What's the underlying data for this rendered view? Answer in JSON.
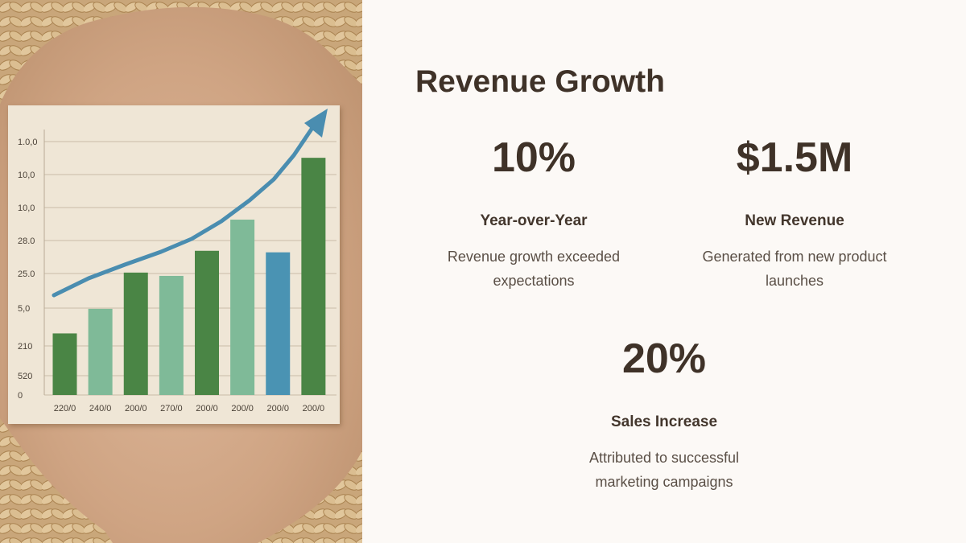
{
  "slide": {
    "title": "Revenue Growth"
  },
  "stats": [
    {
      "value": "10%",
      "label": "Year-over-Year",
      "description": "Revenue growth exceeded expectations"
    },
    {
      "value": "$1.5M",
      "label": "New Revenue",
      "description": "Generated from new product launches"
    },
    {
      "value": "20%",
      "label": "Sales Increase",
      "description": "Attributed to successful marketing campaigns"
    }
  ],
  "colors": {
    "background": "#fcf9f6",
    "text_dark": "#3f3228",
    "bar_dark_green": "#4a8545",
    "bar_light_green": "#7fba98",
    "bar_blue": "#4a93b3",
    "trend_arrow": "#4a8db0"
  },
  "chart_data": {
    "type": "bar",
    "y_tick_labels": [
      "1.0,0",
      "10,0",
      "10,0",
      "28.0",
      "25.0",
      "5,0",
      "210",
      "520",
      "0"
    ],
    "categories": [
      "220/0",
      "240/0",
      "200/0",
      "270/0",
      "200/0",
      "200/0",
      "200/0",
      "200/0"
    ],
    "bar_heights_fraction": [
      0.243,
      0.34,
      0.483,
      0.47,
      0.569,
      0.692,
      0.563,
      0.936
    ],
    "bar_colors": [
      "#4a8545",
      "#7fba98",
      "#4a8545",
      "#7fba98",
      "#4a8545",
      "#7fba98",
      "#4a93b3",
      "#4a8545"
    ],
    "trend": "upward arrow",
    "grid": true
  }
}
